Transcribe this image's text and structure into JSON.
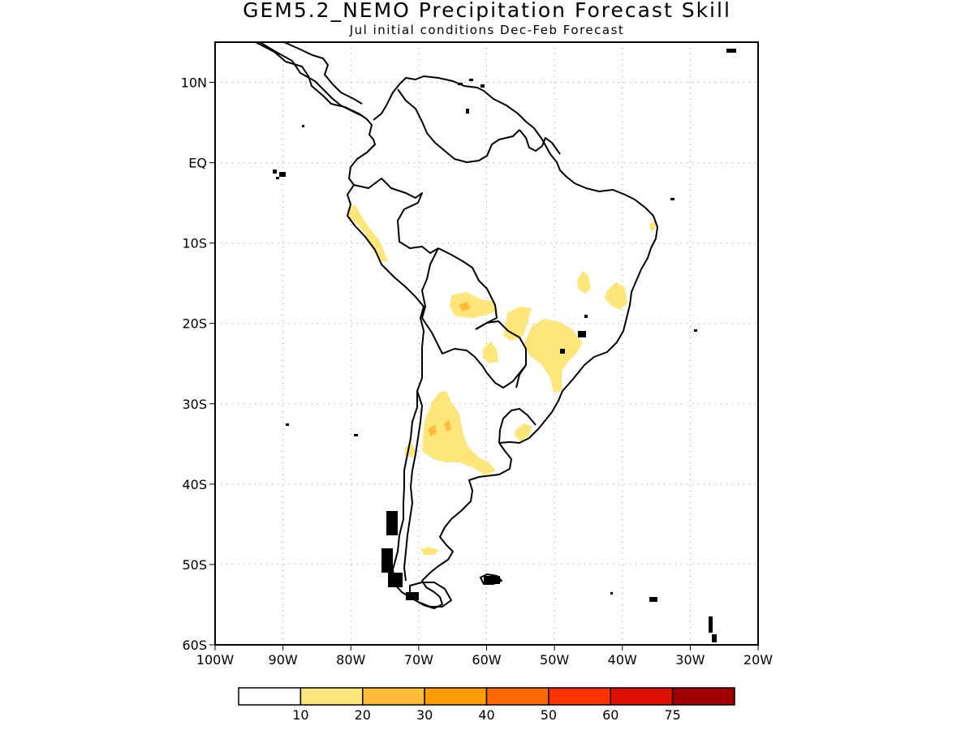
{
  "title": "GEM5.2_NEMO Precipitation Forecast Skill",
  "subtitle": "Jul initial conditions   Dec-Feb Forecast",
  "map": {
    "projection": "latlon",
    "lon_range": [
      -100,
      -20
    ],
    "lat_range": [
      -60,
      15
    ],
    "lat_ticks": [
      {
        "value": 10,
        "label": "10N"
      },
      {
        "value": 0,
        "label": "EQ"
      },
      {
        "value": -10,
        "label": "10S"
      },
      {
        "value": -20,
        "label": "20S"
      },
      {
        "value": -30,
        "label": "30S"
      },
      {
        "value": -40,
        "label": "40S"
      },
      {
        "value": -50,
        "label": "50S"
      },
      {
        "value": -60,
        "label": "60S"
      }
    ],
    "lon_ticks": [
      {
        "value": -100,
        "label": "100W"
      },
      {
        "value": -90,
        "label": "90W"
      },
      {
        "value": -80,
        "label": "80W"
      },
      {
        "value": -70,
        "label": "70W"
      },
      {
        "value": -60,
        "label": "60W"
      },
      {
        "value": -50,
        "label": "50W"
      },
      {
        "value": -40,
        "label": "40W"
      },
      {
        "value": -30,
        "label": "30W"
      },
      {
        "value": -20,
        "label": "20W"
      }
    ],
    "grid": "dotted"
  },
  "colorbar": {
    "colors": [
      "#ffffff",
      "#ffe67a",
      "#ffbb3a",
      "#ff9d00",
      "#ff6a00",
      "#ff3300",
      "#de1100",
      "#a10000"
    ],
    "labels": [
      "10",
      "20",
      "30",
      "40",
      "50",
      "60",
      "75"
    ]
  },
  "colors": {
    "skill_10_20": "#ffe67a",
    "skill_20_30": "#ffbb3a",
    "coastline": "#000000"
  }
}
